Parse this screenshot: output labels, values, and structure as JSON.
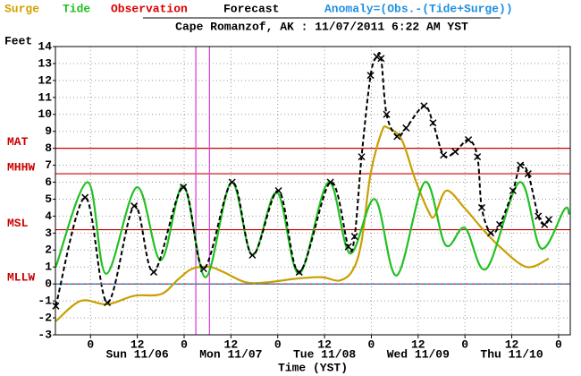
{
  "chart_data": {
    "type": "line",
    "title": "Cape Romanzof, AK : 11/07/2011 6:22 AM YST",
    "y_label": "Feet",
    "x_label": "Time (YST)",
    "forecast_label": "Forecast",
    "forecast_color": "#000000",
    "xlim": [
      -9,
      123
    ],
    "ylim": [
      -3,
      14
    ],
    "yticks": [
      -3,
      -2,
      -1,
      0,
      1,
      2,
      3,
      4,
      5,
      6,
      7,
      8,
      9,
      10,
      11,
      12,
      13,
      14
    ],
    "xticks": [
      0,
      12,
      {
        "value": 24,
        "label": "0"
      },
      {
        "value": 36,
        "label": "12"
      },
      {
        "value": 48,
        "label": "0"
      },
      {
        "value": 60,
        "label": "12"
      },
      {
        "value": 72,
        "label": "0"
      },
      {
        "value": 84,
        "label": "12"
      },
      {
        "value": 96,
        "label": "0"
      },
      {
        "value": 108,
        "label": "12"
      },
      {
        "value": 120,
        "label": "0"
      }
    ],
    "day_labels": [
      {
        "value": 12,
        "label": "Sun 11/06"
      },
      {
        "value": 36,
        "label": "Mon 11/07"
      },
      {
        "value": 60,
        "label": "Tue 11/08"
      },
      {
        "value": 84,
        "label": "Wed 11/09"
      },
      {
        "value": 108,
        "label": "Thu 11/10"
      }
    ],
    "grid": true,
    "reference_lines": [
      {
        "label": "MAT",
        "value": 8,
        "color": "#cc0000"
      },
      {
        "label": "MHHW",
        "value": 6.5,
        "color": "#cc0000"
      },
      {
        "label": "MSL",
        "value": 3.2,
        "color": "#cc0000"
      },
      {
        "label": "MLLW",
        "value": 0,
        "color": "#cc0000"
      }
    ],
    "vlines": [
      {
        "value": 27,
        "color": "#dd44dd"
      },
      {
        "value": 30.5,
        "color": "#dd44dd"
      }
    ],
    "series": [
      {
        "name": "Surge",
        "color": "#c8a000",
        "label_color": "#d4a000",
        "x": [
          -8.9,
          -2.5,
          4.3,
          11.2,
          18.1,
          22.6,
          26.1,
          30.6,
          34.1,
          39.8,
          45.5,
          52.3,
          59.2,
          63.8,
          67.2,
          69.5,
          71.8,
          74.7,
          76.3,
          79.8,
          83.2,
          86.6,
          88.2,
          91.2,
          95.8,
          100.3,
          104.9,
          111.8,
          117.5
        ],
        "values": [
          -2.2,
          -1.0,
          -1.2,
          -0.7,
          -0.6,
          0.3,
          0.9,
          1.0,
          0.7,
          0.1,
          0.1,
          0.3,
          0.4,
          0.2,
          0.8,
          2.5,
          6.5,
          9.0,
          9.2,
          8.5,
          6.2,
          4.3,
          4.0,
          5.5,
          4.5,
          3.3,
          2.2,
          1.0,
          1.5
        ]
      },
      {
        "name": "Tide",
        "color": "#22c022",
        "label_color": "#22c022",
        "x": [
          -8.9,
          -0.7,
          4,
          11.9,
          18,
          23.8,
          29.5,
          36.1,
          41.5,
          47.8,
          53.5,
          61,
          66.5,
          72.9,
          78.5,
          85.7,
          91,
          96,
          101.5,
          110,
          115.5,
          121.5,
          122.7
        ],
        "values": [
          1.0,
          6.0,
          0.6,
          5.7,
          1.4,
          5.8,
          0.4,
          6.0,
          1.7,
          5.4,
          0.6,
          6.0,
          1.8,
          5.0,
          0.5,
          6.0,
          2.3,
          3.3,
          0.9,
          6.0,
          2.1,
          4.4,
          4.1
        ]
      },
      {
        "name": "Observation",
        "color": "#000000",
        "label_color": "#dd0000",
        "x": [
          -8.9,
          -1.4,
          4.3,
          11.2,
          16.2,
          23.8,
          29.0,
          36.3,
          41.5,
          48.2,
          53.5,
          61.5,
          66.1,
          67.7,
          69.5,
          71.8,
          73.4,
          74.5,
          75.9,
          78.6,
          80.9,
          85.5,
          87.8,
          90.5,
          93.5,
          96.9,
          99.2,
          100.3,
          102.6,
          104.9,
          108.3,
          110.2,
          112.2,
          114.8,
          116.4,
          117.5
        ],
        "values": [
          -1.3,
          5.1,
          -1.1,
          4.6,
          0.7,
          5.7,
          0.9,
          6.0,
          1.7,
          5.5,
          0.7,
          6.0,
          2.2,
          2.8,
          7.5,
          12.3,
          13.4,
          13.3,
          10.0,
          8.7,
          9.2,
          10.5,
          9.5,
          7.6,
          7.8,
          8.5,
          7.5,
          4.5,
          3.0,
          3.5,
          5.5,
          7.0,
          6.5,
          4.0,
          3.5,
          3.8
        ]
      },
      {
        "name": "Anomaly=(Obs.-(Tide+Surge))",
        "color": "#2090e0",
        "label_color": "#2090e0",
        "x": [
          -9,
          123
        ],
        "values": [
          0,
          0
        ]
      }
    ]
  }
}
